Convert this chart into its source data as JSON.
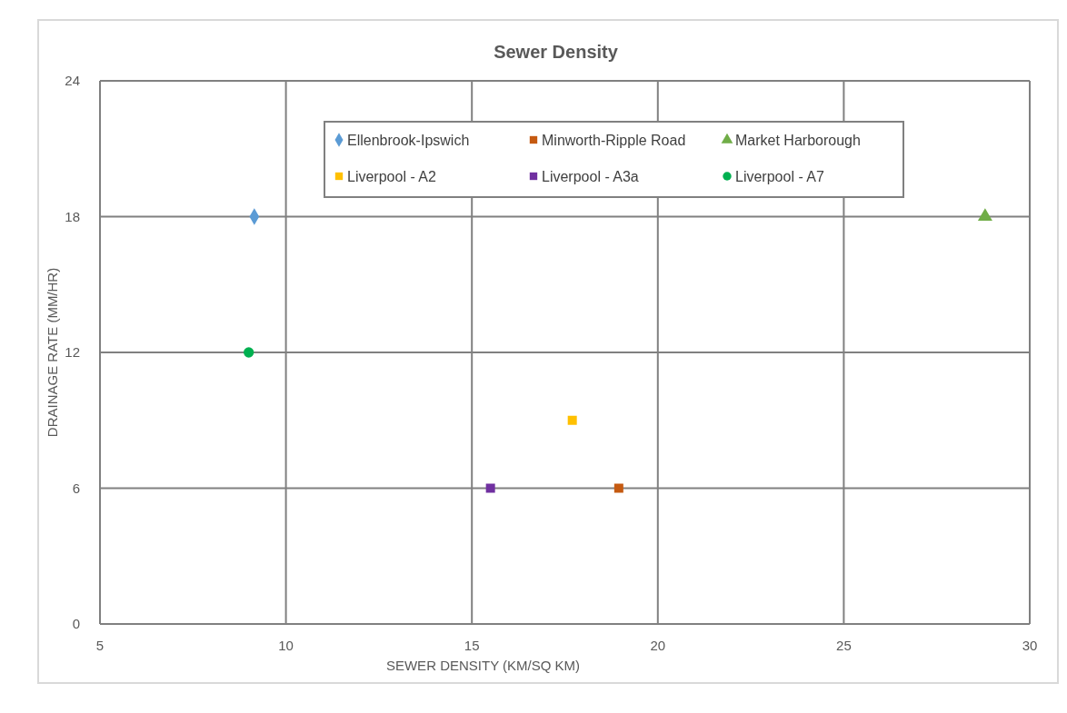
{
  "chart_data": {
    "type": "scatter",
    "title": "Sewer Density",
    "xlabel": "SEWER DENSITY  (KM/SQ KM)",
    "ylabel": "DRAINAGE RATE (MM/HR)",
    "xlim": [
      5,
      30
    ],
    "xticks": [
      5,
      10,
      15,
      20,
      25,
      30
    ],
    "ylim": [
      0,
      24
    ],
    "yticks": [
      0,
      6,
      12,
      18,
      24
    ],
    "grid": true,
    "legend": "top",
    "series": [
      {
        "name": "Ellenbrook-Ipswich",
        "color": "#5b9bd5",
        "marker": "diamond",
        "x": [
          9.15
        ],
        "values": [
          18
        ]
      },
      {
        "name": "Minworth-Ripple Road",
        "color": "#c55a11",
        "marker": "square",
        "x": [
          18.95
        ],
        "values": [
          6
        ]
      },
      {
        "name": "Market Harborough",
        "color": "#70ad47",
        "marker": "triangle",
        "x": [
          28.8
        ],
        "values": [
          18
        ]
      },
      {
        "name": "Liverpool - A2",
        "color": "#ffc000",
        "marker": "square",
        "x": [
          17.7
        ],
        "values": [
          9
        ]
      },
      {
        "name": "Liverpool - A3a",
        "color": "#7030a0",
        "marker": "square",
        "x": [
          15.5
        ],
        "values": [
          6
        ]
      },
      {
        "name": "Liverpool - A7",
        "color": "#00b050",
        "marker": "circle",
        "x": [
          9.0
        ],
        "values": [
          12
        ]
      }
    ]
  }
}
